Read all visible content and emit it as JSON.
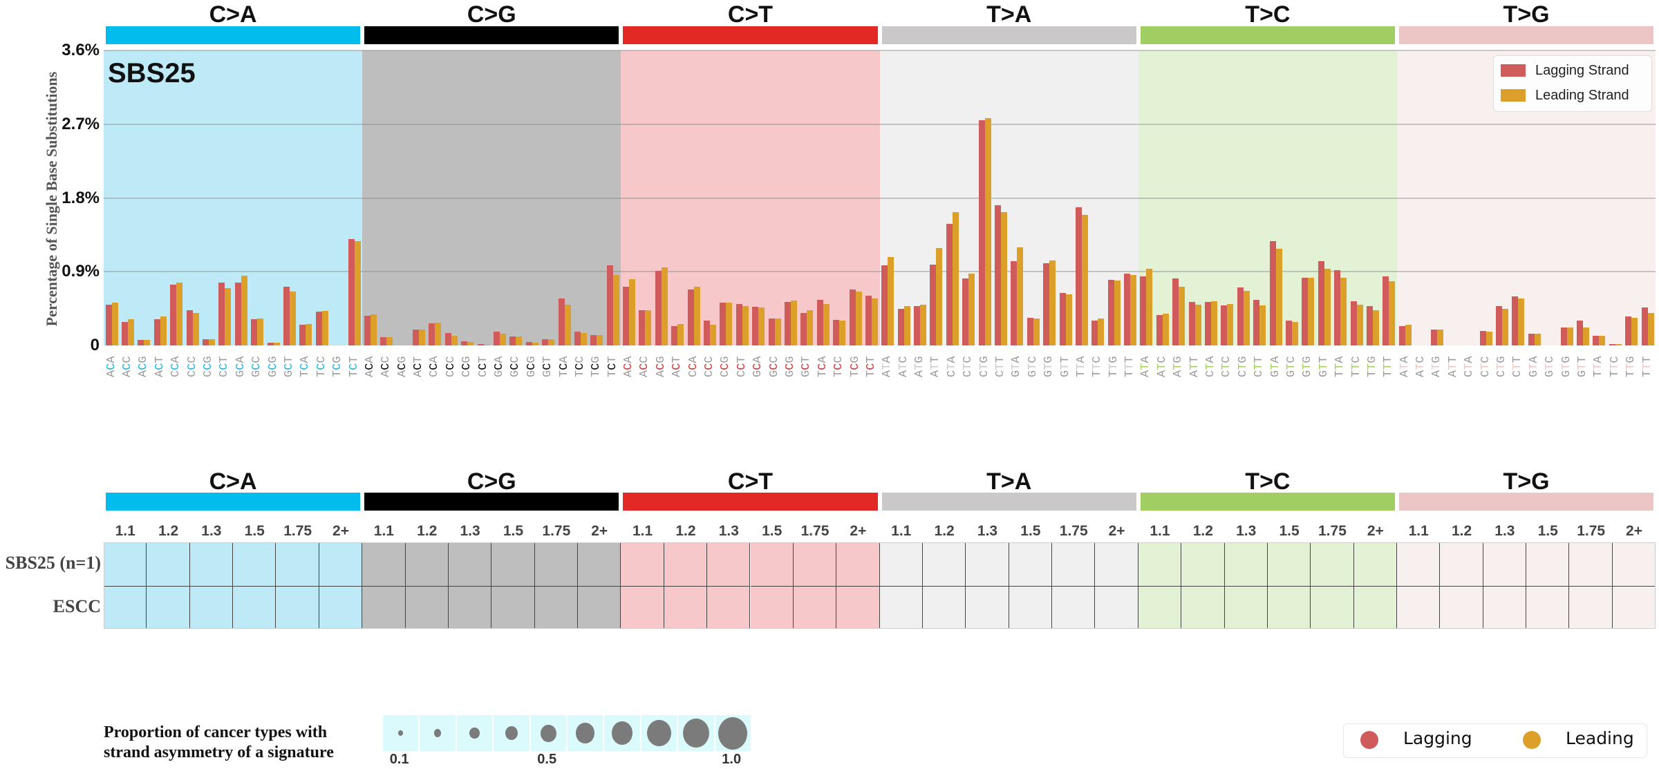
{
  "chart_data": {
    "type": "bar",
    "signature": "SBS25",
    "ylabel": "Percentage of Single Base Substitutions",
    "ylim": [
      0,
      3.6
    ],
    "yticks": [
      {
        "value": 0,
        "label": "0"
      },
      {
        "value": 0.9,
        "label": "0.9%"
      },
      {
        "value": 1.8,
        "label": "1.8%"
      },
      {
        "value": 2.7,
        "label": "2.7%"
      },
      {
        "value": 3.6,
        "label": "3.6%"
      }
    ],
    "grid": true,
    "legend": {
      "placement": "top-right",
      "entries": [
        {
          "name": "Lagging Strand",
          "color": "#d05b5b"
        },
        {
          "name": "Leading Strand",
          "color": "#dca02a"
        }
      ]
    },
    "panels": [
      {
        "mutation": "C>A",
        "bar_color": "#03bcee",
        "bg_color": "#bdeaf6",
        "mid": "C",
        "contexts": [
          "ACA",
          "ACC",
          "ACG",
          "ACT",
          "CCA",
          "CCC",
          "CCG",
          "CCT",
          "GCA",
          "GCC",
          "GCG",
          "GCT",
          "TCA",
          "TCC",
          "TCG",
          "TCT"
        ],
        "lagging": [
          0.5,
          0.29,
          0.07,
          0.32,
          0.74,
          0.43,
          0.08,
          0.77,
          0.77,
          0.32,
          0.03,
          0.72,
          0.25,
          0.41,
          0,
          1.3
        ],
        "leading": [
          0.52,
          0.32,
          0.07,
          0.35,
          0.77,
          0.4,
          0.08,
          0.7,
          0.85,
          0.33,
          0.03,
          0.66,
          0.26,
          0.42,
          0,
          1.27
        ]
      },
      {
        "mutation": "C>G",
        "bar_color": "#000000",
        "bg_color": "#bebebe",
        "mid": "C",
        "contexts": [
          "ACA",
          "ACC",
          "ACG",
          "ACT",
          "CCA",
          "CCC",
          "CCG",
          "CCT",
          "GCA",
          "GCC",
          "GCG",
          "GCT",
          "TCA",
          "TCC",
          "TCG",
          "TCT"
        ],
        "lagging": [
          0.36,
          0.1,
          0,
          0.19,
          0.27,
          0.15,
          0.05,
          0.02,
          0.17,
          0.11,
          0.04,
          0.08,
          0.57,
          0.17,
          0.13,
          0.98
        ],
        "leading": [
          0.38,
          0.1,
          0,
          0.19,
          0.28,
          0.12,
          0.04,
          0.01,
          0.14,
          0.11,
          0.03,
          0.08,
          0.5,
          0.15,
          0.13,
          0.86
        ]
      },
      {
        "mutation": "C>T",
        "bar_color": "#e32926",
        "bg_color": "#f6c8c9",
        "mid": "C",
        "contexts": [
          "ACA",
          "ACC",
          "ACG",
          "ACT",
          "CCA",
          "CCC",
          "CCG",
          "CCT",
          "GCA",
          "GCC",
          "GCG",
          "GCT",
          "TCA",
          "TCC",
          "TCG",
          "TCT"
        ],
        "lagging": [
          0.72,
          0.43,
          0.91,
          0.24,
          0.68,
          0.3,
          0.52,
          0.51,
          0.47,
          0.33,
          0.53,
          0.4,
          0.56,
          0.31,
          0.68,
          0.61
        ],
        "leading": [
          0.81,
          0.43,
          0.95,
          0.26,
          0.72,
          0.25,
          0.52,
          0.48,
          0.46,
          0.33,
          0.55,
          0.43,
          0.51,
          0.3,
          0.66,
          0.57
        ]
      },
      {
        "mutation": "T>A",
        "bar_color": "#cac8c9",
        "bg_color": "#f0f0f0",
        "mid": "T",
        "contexts": [
          "ATA",
          "ATC",
          "ATG",
          "ATT",
          "CTA",
          "CTC",
          "CTG",
          "CTT",
          "GTA",
          "GTC",
          "GTG",
          "GTT",
          "TTA",
          "TTC",
          "TTG",
          "TTT"
        ],
        "lagging": [
          0.98,
          0.45,
          0.48,
          0.99,
          1.48,
          0.82,
          2.75,
          1.71,
          1.03,
          0.34,
          1.0,
          0.64,
          1.69,
          0.3,
          0.8,
          0.88
        ],
        "leading": [
          1.08,
          0.48,
          0.5,
          1.19,
          1.63,
          0.88,
          2.77,
          1.63,
          1.2,
          0.33,
          1.04,
          0.62,
          1.59,
          0.33,
          0.79,
          0.86
        ]
      },
      {
        "mutation": "T>C",
        "bar_color": "#a1ce63",
        "bg_color": "#e3f2d5",
        "mid": "T",
        "contexts": [
          "ATA",
          "ATC",
          "ATG",
          "ATT",
          "CTA",
          "CTC",
          "CTG",
          "CTT",
          "GTA",
          "GTC",
          "GTG",
          "GTT",
          "TTA",
          "TTC",
          "TTG",
          "TTT"
        ],
        "lagging": [
          0.84,
          0.37,
          0.82,
          0.53,
          0.53,
          0.49,
          0.71,
          0.56,
          1.27,
          0.3,
          0.83,
          1.03,
          0.92,
          0.54,
          0.48,
          0.84
        ],
        "leading": [
          0.94,
          0.39,
          0.72,
          0.5,
          0.54,
          0.51,
          0.67,
          0.49,
          1.18,
          0.29,
          0.83,
          0.94,
          0.83,
          0.5,
          0.43,
          0.78
        ]
      },
      {
        "mutation": "T>G",
        "bar_color": "#ebc6c4",
        "bg_color": "#f8efef",
        "mid": "T",
        "contexts": [
          "ATA",
          "ATC",
          "ATG",
          "ATT",
          "CTA",
          "CTC",
          "CTG",
          "CTT",
          "GTA",
          "GTC",
          "GTG",
          "GTT",
          "TTA",
          "TTC",
          "TTG",
          "TTT"
        ],
        "lagging": [
          0.24,
          0,
          0.19,
          0,
          0,
          0.18,
          0.48,
          0.6,
          0.14,
          0,
          0.22,
          0.3,
          0.12,
          0.02,
          0.35,
          0.46
        ],
        "leading": [
          0.25,
          0,
          0.19,
          0,
          0,
          0.17,
          0.45,
          0.57,
          0.14,
          0,
          0.22,
          0.22,
          0.12,
          0.02,
          0.34,
          0.4
        ]
      }
    ]
  },
  "asymmetry_grid": {
    "thresholds": [
      "1.1",
      "1.2",
      "1.3",
      "1.5",
      "1.75",
      "2+"
    ],
    "rows": [
      "SBS25 (n=1)",
      "ESCC"
    ]
  },
  "size_legend": {
    "title_line1": "Proportion of cancer types with",
    "title_line2": "strand asymmetry of a signature",
    "values": [
      0.1,
      0.2,
      0.3,
      0.4,
      0.5,
      0.6,
      0.7,
      0.8,
      0.9,
      1.0
    ],
    "tick_labels": [
      "0.1",
      "0.5",
      "1.0"
    ]
  },
  "strand_legend": {
    "lagging": "Lagging",
    "leading": "Leading",
    "lagging_color": "#d05b5b",
    "leading_color": "#dca02a"
  }
}
